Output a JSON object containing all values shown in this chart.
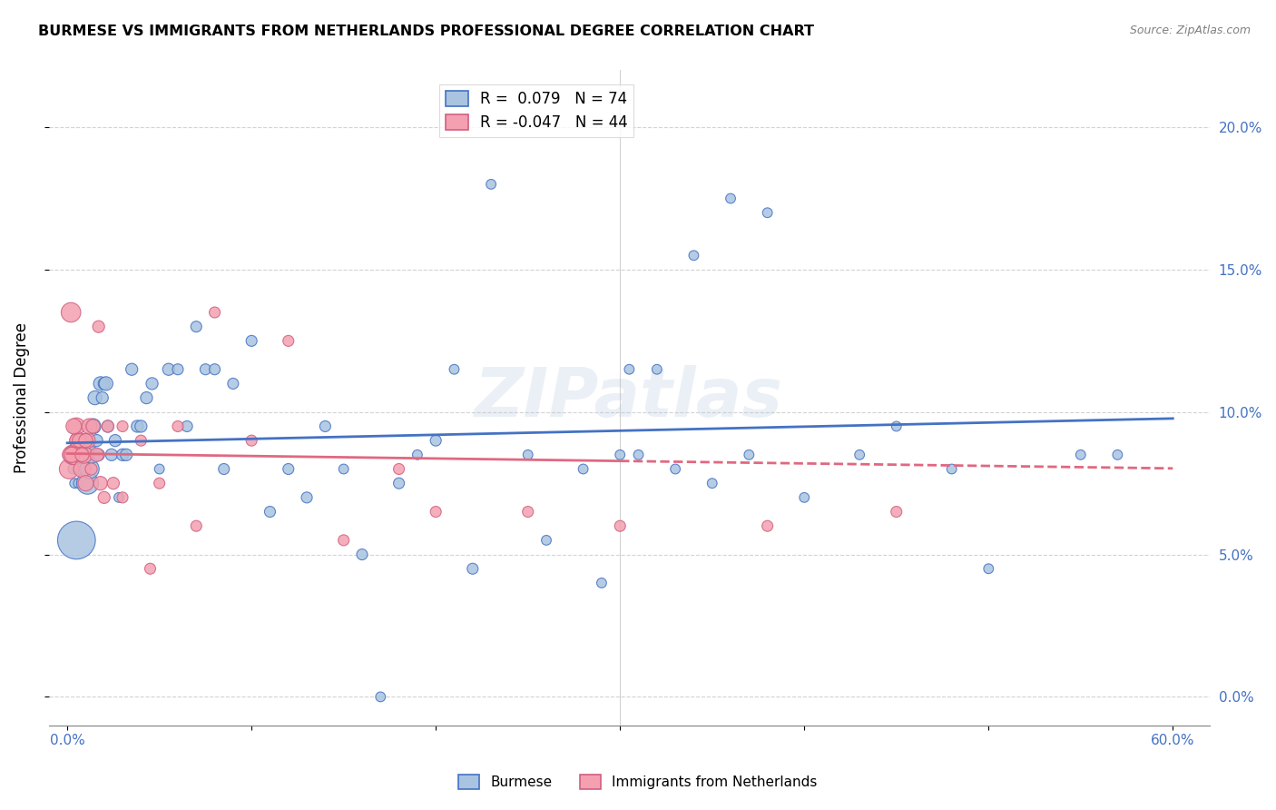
{
  "title": "BURMESE VS IMMIGRANTS FROM NETHERLANDS PROFESSIONAL DEGREE CORRELATION CHART",
  "source": "Source: ZipAtlas.com",
  "ylabel": "Professional Degree",
  "legend_blue": "R =  0.079   N = 74",
  "legend_pink": "R = -0.047   N = 44",
  "legend_label_blue": "Burmese",
  "legend_label_pink": "Immigrants from Netherlands",
  "blue_color": "#a8c4e0",
  "pink_color": "#f4a0b0",
  "line_blue_color": "#4472c4",
  "line_pink_color": "#e06880",
  "watermark": "ZIPatlas",
  "blue_R": 0.079,
  "pink_R": -0.047,
  "blue_scatter": {
    "x": [
      0.3,
      0.4,
      0.5,
      0.6,
      0.7,
      0.8,
      0.9,
      1.0,
      1.1,
      1.2,
      1.3,
      1.4,
      1.5,
      1.6,
      1.7,
      1.8,
      1.9,
      2.0,
      2.1,
      2.2,
      2.4,
      2.6,
      2.8,
      3.0,
      3.2,
      3.5,
      3.8,
      4.0,
      4.3,
      4.6,
      5.0,
      5.5,
      6.0,
      6.5,
      7.0,
      7.5,
      8.0,
      8.5,
      9.0,
      10.0,
      11.0,
      12.0,
      13.0,
      14.0,
      16.0,
      18.0,
      20.0,
      22.0,
      25.0,
      28.0,
      30.0,
      33.0,
      35.0,
      37.0,
      40.0,
      43.0,
      45.0,
      48.0,
      50.0,
      55.0,
      57.0,
      30.5,
      31.0,
      32.0,
      34.0,
      36.0,
      38.0,
      19.0,
      21.0,
      23.0,
      15.0,
      17.0,
      26.0,
      29.0
    ],
    "y": [
      8.0,
      7.5,
      5.5,
      7.5,
      8.5,
      9.0,
      8.0,
      8.5,
      7.5,
      8.0,
      8.5,
      9.5,
      10.5,
      9.0,
      8.5,
      11.0,
      10.5,
      11.0,
      11.0,
      9.5,
      8.5,
      9.0,
      7.0,
      8.5,
      8.5,
      11.5,
      9.5,
      9.5,
      10.5,
      11.0,
      8.0,
      11.5,
      11.5,
      9.5,
      13.0,
      11.5,
      11.5,
      8.0,
      11.0,
      12.5,
      6.5,
      8.0,
      7.0,
      9.5,
      5.0,
      7.5,
      9.0,
      4.5,
      8.5,
      8.0,
      8.5,
      8.0,
      7.5,
      8.5,
      7.0,
      8.5,
      9.5,
      8.0,
      4.5,
      8.5,
      8.5,
      11.5,
      8.5,
      11.5,
      15.5,
      17.5,
      17.0,
      8.5,
      11.5,
      18.0,
      8.0,
      0.0,
      5.5,
      4.0
    ],
    "size": [
      20,
      20,
      300,
      20,
      20,
      40,
      50,
      60,
      100,
      80,
      60,
      50,
      40,
      30,
      30,
      40,
      30,
      30,
      40,
      30,
      30,
      30,
      20,
      30,
      30,
      30,
      30,
      30,
      30,
      30,
      20,
      30,
      25,
      25,
      25,
      25,
      25,
      25,
      25,
      25,
      25,
      25,
      25,
      25,
      25,
      25,
      25,
      25,
      20,
      20,
      20,
      20,
      20,
      20,
      20,
      20,
      20,
      20,
      20,
      20,
      20,
      20,
      20,
      20,
      20,
      20,
      20,
      20,
      20,
      20,
      20,
      20,
      20,
      20
    ]
  },
  "pink_scatter": {
    "x": [
      0.1,
      0.2,
      0.3,
      0.4,
      0.5,
      0.6,
      0.7,
      0.8,
      0.9,
      1.0,
      1.1,
      1.2,
      1.4,
      1.6,
      1.8,
      2.0,
      2.5,
      3.0,
      4.0,
      5.0,
      7.0,
      10.0,
      15.0,
      20.0,
      30.0,
      45.0,
      0.15,
      0.25,
      0.35,
      0.5,
      0.65,
      0.8,
      1.0,
      1.3,
      1.7,
      2.2,
      3.0,
      4.5,
      6.0,
      8.0,
      12.0,
      18.0,
      25.0,
      38.0
    ],
    "y": [
      8.0,
      13.5,
      8.5,
      8.5,
      9.5,
      9.0,
      8.5,
      8.0,
      8.5,
      7.5,
      9.0,
      9.5,
      9.5,
      8.5,
      7.5,
      7.0,
      7.5,
      7.0,
      9.0,
      7.5,
      6.0,
      9.0,
      5.5,
      6.5,
      6.0,
      6.5,
      8.5,
      8.5,
      9.5,
      9.0,
      9.0,
      8.5,
      9.0,
      8.0,
      13.0,
      9.5,
      9.5,
      4.5,
      9.5,
      13.5,
      12.5,
      8.0,
      6.5,
      6.0
    ],
    "size": [
      80,
      80,
      80,
      80,
      60,
      60,
      60,
      60,
      60,
      50,
      50,
      50,
      40,
      40,
      40,
      30,
      30,
      25,
      25,
      25,
      25,
      25,
      25,
      25,
      25,
      25,
      50,
      50,
      50,
      40,
      40,
      40,
      40,
      30,
      30,
      30,
      25,
      25,
      25,
      25,
      25,
      25,
      25,
      25
    ]
  }
}
